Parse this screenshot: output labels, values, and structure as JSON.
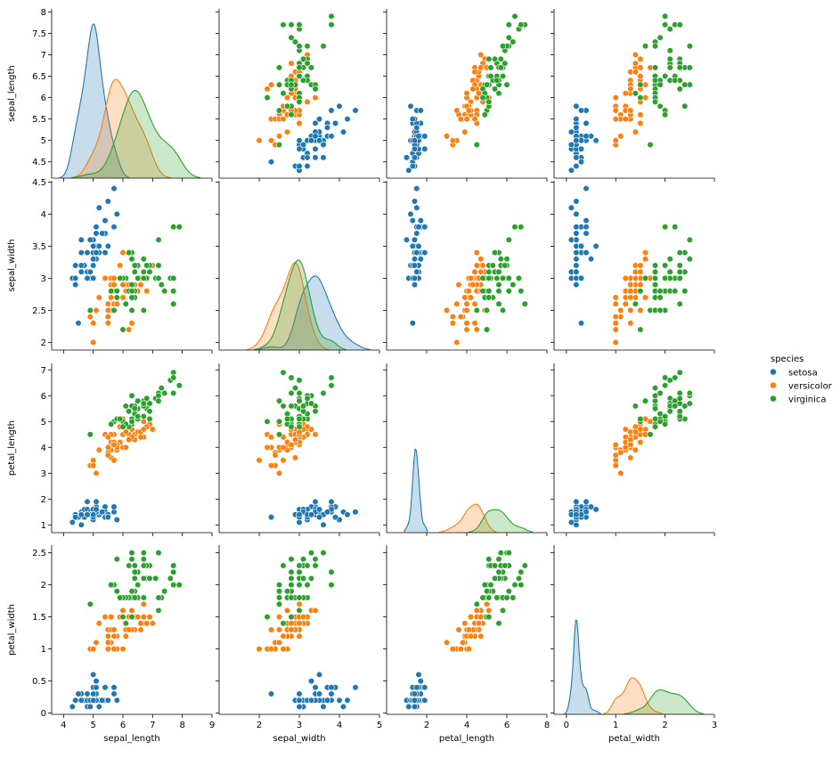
{
  "chart_data": {
    "type": "scatter",
    "variables": [
      "sepal_length",
      "sepal_width",
      "petal_length",
      "petal_width"
    ],
    "axes": {
      "sepal_length": {
        "label": "sepal_length",
        "lim": [
          3.6,
          9.0
        ],
        "ticks": [
          4,
          5,
          6,
          7,
          8,
          9
        ],
        "ylim": [
          4.12,
          8.07
        ],
        "yticks": [
          4.5,
          5.0,
          5.5,
          6.0,
          6.5,
          7.0,
          7.5,
          8.0
        ]
      },
      "sepal_width": {
        "label": "sepal_width",
        "lim": [
          1.0,
          5.0
        ],
        "ticks": [
          2,
          3,
          4,
          5
        ],
        "ylim": [
          1.88,
          4.52
        ],
        "yticks": [
          2.0,
          2.5,
          3.0,
          3.5,
          4.0,
          4.5
        ]
      },
      "petal_length": {
        "label": "petal_length",
        "lim": [
          0.0,
          8.0
        ],
        "ticks": [
          2,
          4,
          6,
          8
        ],
        "ylim": [
          0.7,
          7.25
        ],
        "yticks": [
          1,
          2,
          3,
          4,
          5,
          6,
          7
        ]
      },
      "petal_width": {
        "label": "petal_width",
        "lim": [
          -0.25,
          3.0
        ],
        "ticks": [
          0,
          1,
          2,
          3
        ],
        "ylim": [
          -0.02,
          2.62
        ],
        "yticks": [
          0.0,
          0.5,
          1.0,
          1.5,
          2.0,
          2.5
        ]
      }
    },
    "diag_ymax": [
      1.2,
      2.3,
      4.7,
      8.5
    ],
    "legend": {
      "title": "species",
      "placement": "right"
    },
    "series": [
      {
        "name": "setosa",
        "color": "#1f77b4",
        "points": [
          [
            5.1,
            3.5,
            1.4,
            0.2
          ],
          [
            4.9,
            3.0,
            1.4,
            0.2
          ],
          [
            4.7,
            3.2,
            1.3,
            0.2
          ],
          [
            4.6,
            3.1,
            1.5,
            0.2
          ],
          [
            5.0,
            3.6,
            1.4,
            0.2
          ],
          [
            5.4,
            3.9,
            1.7,
            0.4
          ],
          [
            4.6,
            3.4,
            1.4,
            0.3
          ],
          [
            5.0,
            3.4,
            1.5,
            0.2
          ],
          [
            4.4,
            2.9,
            1.4,
            0.2
          ],
          [
            4.9,
            3.1,
            1.5,
            0.1
          ],
          [
            5.4,
            3.7,
            1.5,
            0.2
          ],
          [
            4.8,
            3.4,
            1.6,
            0.2
          ],
          [
            4.8,
            3.0,
            1.4,
            0.1
          ],
          [
            4.3,
            3.0,
            1.1,
            0.1
          ],
          [
            5.8,
            4.0,
            1.2,
            0.2
          ],
          [
            5.7,
            4.4,
            1.5,
            0.4
          ],
          [
            5.4,
            3.9,
            1.3,
            0.4
          ],
          [
            5.1,
            3.5,
            1.4,
            0.3
          ],
          [
            5.7,
            3.8,
            1.7,
            0.3
          ],
          [
            5.1,
            3.8,
            1.5,
            0.3
          ],
          [
            5.4,
            3.4,
            1.7,
            0.2
          ],
          [
            5.1,
            3.7,
            1.5,
            0.4
          ],
          [
            4.6,
            3.6,
            1.0,
            0.2
          ],
          [
            5.1,
            3.3,
            1.7,
            0.5
          ],
          [
            4.8,
            3.4,
            1.9,
            0.2
          ],
          [
            5.0,
            3.0,
            1.6,
            0.2
          ],
          [
            5.0,
            3.4,
            1.6,
            0.4
          ],
          [
            5.2,
            3.5,
            1.5,
            0.2
          ],
          [
            5.2,
            3.4,
            1.4,
            0.2
          ],
          [
            4.7,
            3.2,
            1.6,
            0.2
          ],
          [
            4.8,
            3.1,
            1.6,
            0.2
          ],
          [
            5.4,
            3.4,
            1.5,
            0.4
          ],
          [
            5.2,
            4.1,
            1.5,
            0.1
          ],
          [
            5.5,
            4.2,
            1.4,
            0.2
          ],
          [
            4.9,
            3.1,
            1.5,
            0.2
          ],
          [
            5.0,
            3.2,
            1.2,
            0.2
          ],
          [
            5.5,
            3.5,
            1.3,
            0.2
          ],
          [
            4.9,
            3.6,
            1.4,
            0.1
          ],
          [
            4.4,
            3.0,
            1.3,
            0.2
          ],
          [
            5.1,
            3.4,
            1.5,
            0.2
          ],
          [
            5.0,
            3.5,
            1.3,
            0.3
          ],
          [
            4.5,
            2.3,
            1.3,
            0.3
          ],
          [
            4.4,
            3.2,
            1.3,
            0.2
          ],
          [
            5.0,
            3.5,
            1.6,
            0.6
          ],
          [
            5.1,
            3.8,
            1.9,
            0.4
          ],
          [
            4.8,
            3.0,
            1.4,
            0.3
          ],
          [
            5.1,
            3.8,
            1.6,
            0.2
          ],
          [
            4.6,
            3.2,
            1.4,
            0.2
          ],
          [
            5.3,
            3.7,
            1.5,
            0.2
          ],
          [
            5.0,
            3.3,
            1.4,
            0.2
          ]
        ]
      },
      {
        "name": "versicolor",
        "color": "#ff7f0e",
        "points": [
          [
            7.0,
            3.2,
            4.7,
            1.4
          ],
          [
            6.4,
            3.2,
            4.5,
            1.5
          ],
          [
            6.9,
            3.1,
            4.9,
            1.5
          ],
          [
            5.5,
            2.3,
            4.0,
            1.3
          ],
          [
            6.5,
            2.8,
            4.6,
            1.5
          ],
          [
            5.7,
            2.8,
            4.5,
            1.3
          ],
          [
            6.3,
            3.3,
            4.7,
            1.6
          ],
          [
            4.9,
            2.4,
            3.3,
            1.0
          ],
          [
            6.6,
            2.9,
            4.6,
            1.3
          ],
          [
            5.2,
            2.7,
            3.9,
            1.4
          ],
          [
            5.0,
            2.0,
            3.5,
            1.0
          ],
          [
            5.9,
            3.0,
            4.2,
            1.5
          ],
          [
            6.0,
            2.2,
            4.0,
            1.0
          ],
          [
            6.1,
            2.9,
            4.7,
            1.4
          ],
          [
            5.6,
            2.9,
            3.6,
            1.3
          ],
          [
            6.7,
            3.1,
            4.4,
            1.4
          ],
          [
            5.6,
            3.0,
            4.5,
            1.5
          ],
          [
            5.8,
            2.7,
            4.1,
            1.0
          ],
          [
            6.2,
            2.2,
            4.5,
            1.5
          ],
          [
            5.6,
            2.5,
            3.9,
            1.1
          ],
          [
            5.9,
            3.2,
            4.8,
            1.8
          ],
          [
            6.1,
            2.8,
            4.0,
            1.3
          ],
          [
            6.3,
            2.5,
            4.9,
            1.5
          ],
          [
            6.1,
            2.8,
            4.7,
            1.2
          ],
          [
            6.4,
            2.9,
            4.3,
            1.3
          ],
          [
            6.6,
            3.0,
            4.4,
            1.4
          ],
          [
            6.8,
            2.8,
            4.8,
            1.4
          ],
          [
            6.7,
            3.0,
            5.0,
            1.7
          ],
          [
            6.0,
            2.9,
            4.5,
            1.5
          ],
          [
            5.7,
            2.6,
            3.5,
            1.0
          ],
          [
            5.5,
            2.4,
            3.8,
            1.1
          ],
          [
            5.5,
            2.4,
            3.7,
            1.0
          ],
          [
            5.8,
            2.7,
            3.9,
            1.2
          ],
          [
            6.0,
            2.7,
            5.1,
            1.6
          ],
          [
            5.4,
            3.0,
            4.5,
            1.5
          ],
          [
            6.0,
            3.4,
            4.5,
            1.6
          ],
          [
            6.7,
            3.1,
            4.7,
            1.5
          ],
          [
            6.3,
            2.3,
            4.4,
            1.3
          ],
          [
            5.6,
            3.0,
            4.1,
            1.3
          ],
          [
            5.5,
            2.5,
            4.0,
            1.3
          ],
          [
            5.5,
            2.6,
            4.4,
            1.2
          ],
          [
            6.1,
            3.0,
            4.6,
            1.4
          ],
          [
            5.8,
            2.6,
            4.0,
            1.2
          ],
          [
            5.0,
            2.3,
            3.3,
            1.0
          ],
          [
            5.6,
            2.7,
            4.2,
            1.3
          ],
          [
            5.7,
            3.0,
            4.2,
            1.2
          ],
          [
            5.7,
            2.9,
            4.2,
            1.3
          ],
          [
            6.2,
            2.9,
            4.3,
            1.3
          ],
          [
            5.1,
            2.5,
            3.0,
            1.1
          ],
          [
            5.7,
            2.8,
            4.1,
            1.3
          ]
        ]
      },
      {
        "name": "virginica",
        "color": "#2ca02c",
        "points": [
          [
            6.3,
            3.3,
            6.0,
            2.5
          ],
          [
            5.8,
            2.7,
            5.1,
            1.9
          ],
          [
            7.1,
            3.0,
            5.9,
            2.1
          ],
          [
            6.3,
            2.9,
            5.6,
            1.8
          ],
          [
            6.5,
            3.0,
            5.8,
            2.2
          ],
          [
            7.6,
            3.0,
            6.6,
            2.1
          ],
          [
            4.9,
            2.5,
            4.5,
            1.7
          ],
          [
            7.3,
            2.9,
            6.3,
            1.8
          ],
          [
            6.7,
            2.5,
            5.8,
            1.8
          ],
          [
            7.2,
            3.6,
            6.1,
            2.5
          ],
          [
            6.5,
            3.2,
            5.1,
            2.0
          ],
          [
            6.4,
            2.7,
            5.3,
            1.9
          ],
          [
            6.8,
            3.0,
            5.5,
            2.1
          ],
          [
            5.7,
            2.5,
            5.0,
            2.0
          ],
          [
            5.8,
            2.8,
            5.1,
            2.4
          ],
          [
            6.4,
            3.2,
            5.3,
            2.3
          ],
          [
            6.5,
            3.0,
            5.5,
            1.8
          ],
          [
            7.7,
            3.8,
            6.7,
            2.2
          ],
          [
            7.7,
            2.6,
            6.9,
            2.3
          ],
          [
            6.0,
            2.2,
            5.0,
            1.5
          ],
          [
            6.9,
            3.2,
            5.7,
            2.3
          ],
          [
            5.6,
            2.8,
            4.9,
            2.0
          ],
          [
            7.7,
            2.8,
            6.7,
            2.0
          ],
          [
            6.3,
            2.7,
            4.9,
            1.8
          ],
          [
            6.7,
            3.3,
            5.7,
            2.1
          ],
          [
            7.2,
            3.2,
            6.0,
            1.8
          ],
          [
            6.2,
            2.8,
            4.8,
            1.8
          ],
          [
            6.1,
            3.0,
            4.9,
            1.8
          ],
          [
            6.4,
            2.8,
            5.6,
            2.1
          ],
          [
            7.2,
            3.0,
            5.8,
            1.6
          ],
          [
            7.4,
            2.8,
            6.1,
            1.9
          ],
          [
            7.9,
            3.8,
            6.4,
            2.0
          ],
          [
            6.4,
            2.8,
            5.6,
            2.2
          ],
          [
            6.3,
            2.8,
            5.1,
            1.5
          ],
          [
            6.1,
            2.6,
            5.6,
            1.4
          ],
          [
            7.7,
            3.0,
            6.1,
            2.3
          ],
          [
            6.3,
            3.4,
            5.6,
            2.4
          ],
          [
            6.4,
            3.1,
            5.5,
            1.8
          ],
          [
            6.0,
            3.0,
            4.8,
            1.8
          ],
          [
            6.9,
            3.1,
            5.4,
            2.1
          ],
          [
            6.7,
            3.1,
            5.6,
            2.4
          ],
          [
            6.9,
            3.1,
            5.1,
            2.3
          ],
          [
            5.8,
            2.7,
            5.1,
            1.9
          ],
          [
            6.8,
            3.2,
            5.9,
            2.3
          ],
          [
            6.7,
            3.3,
            5.7,
            2.5
          ],
          [
            6.7,
            3.0,
            5.2,
            2.3
          ],
          [
            6.3,
            2.5,
            5.0,
            1.9
          ],
          [
            6.5,
            3.0,
            5.2,
            2.0
          ],
          [
            6.2,
            3.4,
            5.4,
            2.3
          ],
          [
            5.9,
            3.0,
            5.1,
            1.8
          ]
        ]
      }
    ]
  }
}
